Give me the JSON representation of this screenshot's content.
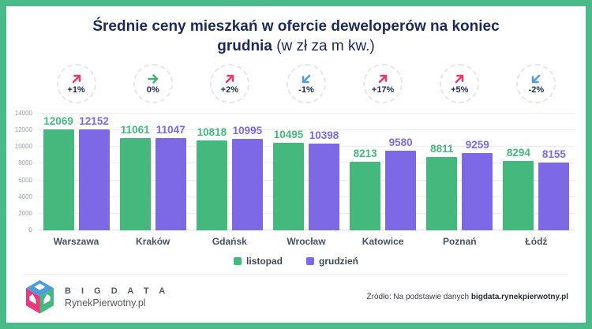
{
  "title": {
    "bold": "Średnie ceny mieszkań w ofercie deweloperów na koniec grudnia",
    "light": "(w zł za m kw.)"
  },
  "chart_data": {
    "type": "bar",
    "categories": [
      "Warszawa",
      "Kraków",
      "Gdańsk",
      "Wrocław",
      "Katowice",
      "Poznań",
      "Łódź"
    ],
    "series": [
      {
        "name": "listopad",
        "color": "#45b87e",
        "values": [
          12069,
          11061,
          10818,
          10495,
          8213,
          8811,
          8294
        ]
      },
      {
        "name": "grudzień",
        "color": "#7d68e6",
        "values": [
          12152,
          11047,
          10995,
          10398,
          9580,
          9259,
          8155
        ]
      }
    ],
    "change_badges": [
      {
        "label": "+1%",
        "direction": "up",
        "color": "#e8386f"
      },
      {
        "label": "0%",
        "direction": "flat",
        "color": "#3eb573"
      },
      {
        "label": "+2%",
        "direction": "up",
        "color": "#e8386f"
      },
      {
        "label": "-1%",
        "direction": "down",
        "color": "#4a9de8"
      },
      {
        "label": "+17%",
        "direction": "up",
        "color": "#e8386f"
      },
      {
        "label": "+5%",
        "direction": "up",
        "color": "#e8386f"
      },
      {
        "label": "-2%",
        "direction": "down",
        "color": "#4a9de8"
      }
    ],
    "y_ticks": [
      14000,
      12000,
      10000,
      8000,
      6000,
      4000,
      2000,
      0
    ],
    "ylim": [
      0,
      14000
    ],
    "grid": true,
    "legend_position": "bottom"
  },
  "footer": {
    "brand_top": "B I G   D A T A",
    "brand_bottom": "RynekPierwotny.pl",
    "source_prefix": "Źródło: Na podstawie danych ",
    "source_bold": "bigdata.rynekpierwotny.pl"
  },
  "colors": {
    "frame": "#4aba88",
    "title": "#1b2a5c",
    "november": "#45b87e",
    "december": "#7d68e6",
    "logo_top": "#4e9cd8",
    "logo_left": "#e8397c",
    "logo_right": "#45b87e"
  }
}
